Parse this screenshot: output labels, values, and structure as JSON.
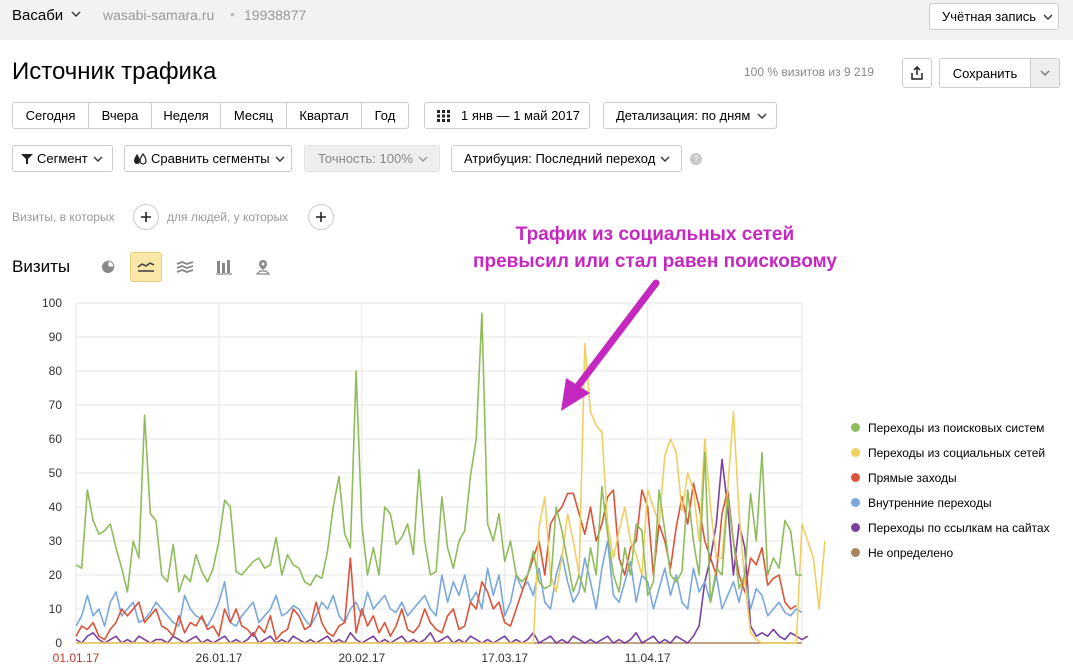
{
  "header": {
    "site_name": "Васаби",
    "site_domain": "wasabi-samara.ru",
    "separator": "•",
    "counter_id": "19938877",
    "account_label": "Учётная запись"
  },
  "report": {
    "title": "Источник трафика",
    "visits_share": "100 % визитов из 9 219",
    "save_label": "Сохранить"
  },
  "period": {
    "buttons": [
      "Сегодня",
      "Вчера",
      "Неделя",
      "Месяц",
      "Квартал",
      "Год"
    ],
    "date_range": "1 янв — 1 май 2017",
    "detail": "Детализация: по дням"
  },
  "filters": {
    "segment": "Сегмент",
    "compare": "Сравнить сегменты",
    "accuracy": "Точность: 100%",
    "attribution": "Атрибуция: Последний переход",
    "help": "?"
  },
  "segment_builder": {
    "visits_label": "Визиты, в которых",
    "people_label": "для людей, у которых"
  },
  "chart_header": {
    "title": "Визиты",
    "types": [
      "pie-chart-icon",
      "line-chart-icon",
      "area-chart-icon",
      "bar-chart-icon",
      "map-icon"
    ],
    "active_type": "line-chart-icon",
    "active_color": "#fbe7a8"
  },
  "annotation": {
    "line1": "Трафик из социальных сетей",
    "line2": "превысил или стал равен поисковому",
    "color": "#c528c0"
  },
  "chart_data": {
    "type": "line",
    "x_start": "01.01.17",
    "x_end": "01.05.17",
    "x_ticks": [
      "01.01.17",
      "26.01.17",
      "20.02.17",
      "17.03.17",
      "11.04.17"
    ],
    "ylim": [
      0,
      100
    ],
    "y_ticks": [
      0,
      10,
      20,
      30,
      40,
      50,
      60,
      70,
      80,
      90,
      100
    ],
    "grid": true,
    "legend_position": "right",
    "series": [
      {
        "name": "Переходы из поисковых систем",
        "color": "#8fbc5b",
        "values": [
          23,
          22,
          45,
          36,
          32,
          33,
          35,
          28,
          22,
          15,
          30,
          25,
          67,
          38,
          36,
          20,
          18,
          29,
          15,
          20,
          18,
          26,
          21,
          18,
          22,
          30,
          42,
          40,
          21,
          20,
          22,
          24,
          25,
          22,
          23,
          31,
          20,
          26,
          23,
          22,
          18,
          17,
          20,
          19,
          27,
          40,
          49,
          32,
          28,
          80,
          35,
          20,
          28,
          20,
          40,
          38,
          29,
          31,
          35,
          26,
          51,
          30,
          20,
          21,
          43,
          28,
          22,
          30,
          33,
          49,
          60,
          97,
          35,
          30,
          38,
          24,
          30,
          20,
          18,
          20,
          27,
          18,
          16,
          17,
          40,
          33,
          24,
          15,
          20,
          15,
          28,
          20,
          46,
          32,
          20,
          15,
          28,
          20,
          35,
          33,
          14,
          18,
          45,
          33,
          20,
          18,
          21,
          45,
          30,
          20,
          56,
          12,
          22,
          20,
          43,
          30,
          16,
          20,
          44,
          30,
          56,
          20,
          25,
          22,
          36,
          33,
          20,
          20
        ]
      },
      {
        "name": "Переходы из социальных сетей",
        "color": "#f0cf62",
        "values": [
          0,
          0,
          0,
          0,
          0,
          0,
          0,
          0,
          0,
          0,
          0,
          0,
          0,
          0,
          0,
          0,
          0,
          0,
          0,
          0,
          0,
          0,
          0,
          0,
          0,
          0,
          0,
          0,
          0,
          0,
          0,
          0,
          0,
          0,
          0,
          0,
          0,
          0,
          0,
          0,
          0,
          0,
          0,
          0,
          0,
          0,
          0,
          0,
          0,
          0,
          0,
          0,
          0,
          0,
          0,
          0,
          0,
          0,
          0,
          0,
          0,
          0,
          0,
          0,
          0,
          0,
          0,
          0,
          0,
          0,
          0,
          0,
          0,
          0,
          0,
          0,
          0,
          0,
          0,
          0,
          0,
          34,
          43,
          20,
          15,
          25,
          38,
          30,
          20,
          88,
          68,
          64,
          62,
          35,
          25,
          33,
          40,
          30,
          26,
          20,
          45,
          40,
          35,
          55,
          60,
          56,
          39,
          50,
          45,
          30,
          60,
          40,
          25,
          25,
          45,
          68,
          38,
          18,
          3,
          1,
          0,
          0,
          0,
          0,
          0,
          0,
          0,
          35,
          30,
          25,
          10,
          30
        ]
      },
      {
        "name": "Прямые заходы",
        "color": "#db5338",
        "values": [
          2,
          5,
          4,
          6,
          2,
          1,
          4,
          6,
          10,
          8,
          10,
          12,
          6,
          8,
          10,
          5,
          4,
          2,
          8,
          3,
          6,
          5,
          8,
          4,
          5,
          2,
          10,
          6,
          10,
          5,
          4,
          2,
          5,
          3,
          8,
          1,
          3,
          4,
          10,
          8,
          4,
          5,
          12,
          6,
          3,
          2,
          5,
          6,
          25,
          3,
          10,
          5,
          8,
          3,
          6,
          2,
          5,
          10,
          4,
          3,
          5,
          10,
          6,
          4,
          3,
          8,
          10,
          4,
          5,
          12,
          10,
          18,
          15,
          10,
          12,
          6,
          5,
          10,
          15,
          20,
          25,
          30,
          20,
          35,
          38,
          40,
          44,
          44,
          38,
          32,
          40,
          30,
          35,
          43,
          45,
          25,
          20,
          28,
          30,
          45,
          40,
          20,
          35,
          30,
          22,
          34,
          43,
          35,
          47,
          40,
          30,
          25,
          20,
          38,
          45,
          30,
          20,
          15,
          25,
          23,
          28,
          17,
          19,
          20,
          12,
          10,
          11
        ]
      },
      {
        "name": "Внутренние переходы",
        "color": "#7aa8dc",
        "values": [
          5,
          8,
          14,
          8,
          10,
          5,
          12,
          15,
          8,
          10,
          12,
          6,
          7,
          9,
          12,
          10,
          8,
          6,
          5,
          14,
          10,
          8,
          7,
          5,
          8,
          12,
          18,
          6,
          5,
          8,
          10,
          12,
          6,
          8,
          10,
          14,
          8,
          9,
          11,
          10,
          7,
          5,
          8,
          12,
          10,
          14,
          8,
          6,
          10,
          12,
          8,
          15,
          10,
          12,
          14,
          10,
          9,
          12,
          8,
          10,
          12,
          14,
          10,
          8,
          20,
          12,
          18,
          14,
          20,
          12,
          15,
          10,
          22,
          14,
          20,
          8,
          12,
          20,
          16,
          18,
          14,
          22,
          12,
          10,
          20,
          26,
          18,
          12,
          15,
          25,
          18,
          10,
          22,
          30,
          14,
          12,
          18,
          24,
          12,
          20,
          18,
          10,
          16,
          22,
          14,
          20,
          12,
          10,
          22,
          15,
          18,
          12,
          20,
          10,
          14,
          18,
          12,
          20,
          10,
          16,
          14,
          8,
          10,
          12,
          9,
          8,
          10,
          9
        ]
      },
      {
        "name": "Переходы по ссылкам на сайтах",
        "color": "#7c3fa0",
        "values": [
          1,
          0,
          2,
          3,
          1,
          0,
          1,
          2,
          0,
          1,
          0,
          2,
          1,
          0,
          1,
          1,
          0,
          2,
          1,
          0,
          1,
          2,
          0,
          1,
          0,
          1,
          2,
          0,
          1,
          0,
          1,
          3,
          0,
          1,
          2,
          0,
          1,
          0,
          2,
          1,
          0,
          1,
          0,
          1,
          2,
          0,
          1,
          0,
          3,
          1,
          0,
          1,
          2,
          0,
          1,
          0,
          1,
          2,
          0,
          1,
          0,
          1,
          3,
          0,
          1,
          2,
          0,
          1,
          0,
          2,
          1,
          0,
          1,
          0,
          1,
          2,
          0,
          1,
          0,
          1,
          3,
          0,
          1,
          2,
          0,
          1,
          0,
          2,
          1,
          0,
          1,
          0,
          1,
          2,
          0,
          1,
          0,
          1,
          3,
          0,
          1,
          2,
          0,
          1,
          0,
          2,
          1,
          0,
          2,
          5,
          18,
          25,
          35,
          54,
          40,
          20,
          35,
          28,
          5,
          2,
          3,
          2,
          4,
          2,
          1,
          3,
          2,
          1,
          2
        ]
      },
      {
        "name": "Не определено",
        "color": "#a8865c",
        "values": [
          0,
          0,
          0,
          0,
          0,
          0,
          0,
          0,
          0,
          0,
          0,
          0,
          0,
          0,
          0,
          0,
          0,
          0,
          0,
          0,
          0,
          0,
          0,
          0,
          0,
          0,
          0,
          0,
          0,
          0,
          0,
          0,
          0,
          0,
          0,
          0,
          0,
          0,
          0,
          0,
          0,
          0,
          0,
          0,
          0,
          0,
          0,
          0,
          0,
          0,
          0,
          0,
          0,
          0,
          0,
          0,
          0,
          0,
          0,
          0,
          0,
          0,
          0,
          0,
          0,
          0,
          0,
          0,
          0,
          0,
          0,
          0,
          0,
          0,
          0,
          0,
          0,
          0,
          0,
          0,
          0,
          0,
          0,
          0,
          0,
          0,
          0,
          0,
          0,
          0,
          0,
          0,
          0,
          0,
          0,
          0,
          0,
          0,
          0,
          0,
          0,
          0,
          0,
          0,
          0,
          0,
          0,
          0,
          0,
          0,
          0,
          0,
          0,
          0,
          0,
          0,
          0,
          0,
          0,
          0,
          0,
          0,
          0,
          0,
          0,
          0,
          0,
          0
        ]
      }
    ]
  }
}
